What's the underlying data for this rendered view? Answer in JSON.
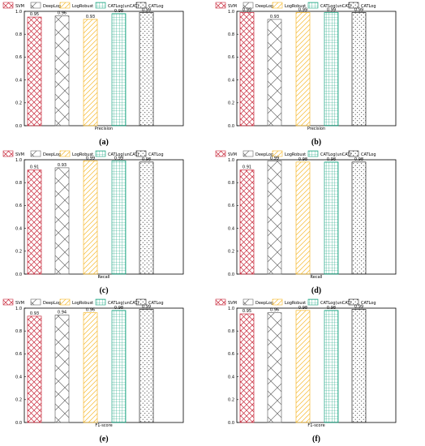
{
  "series_styles": [
    {
      "name": "SVM",
      "color": "#c8283a",
      "pattern": "cross"
    },
    {
      "name": "DeepLog",
      "color": "#6b6b6b",
      "pattern": "cross"
    },
    {
      "name": "LogRobust",
      "color": "#f5b92e",
      "pattern": "hatch"
    },
    {
      "name": "CATLog(unCAT)",
      "color": "#14a37f",
      "pattern": "grid"
    },
    {
      "name": "CATLog",
      "color": "#222222",
      "pattern": "dots"
    }
  ],
  "chart_data": [
    {
      "type": "bar",
      "caption": "(a)",
      "xlabel": "Precision",
      "ylim": [
        0,
        1.0
      ],
      "yticks": [
        "0.0",
        "0.2",
        "0.4",
        "0.6",
        "0.8",
        "1.0"
      ],
      "categories": [
        "SVM",
        "DeepLog",
        "LogRobust",
        "CATLog(unCAT)",
        "CATLog"
      ],
      "values": [
        0.95,
        0.96,
        0.93,
        0.98,
        0.99
      ],
      "labels": [
        "0.95",
        "0.96",
        "0.93",
        "0.98",
        "0.99"
      ]
    },
    {
      "type": "bar",
      "caption": "(b)",
      "xlabel": "Precision",
      "ylim": [
        0,
        1.0
      ],
      "yticks": [
        "0.0",
        "0.2",
        "0.4",
        "0.6",
        "0.8",
        "1.0"
      ],
      "categories": [
        "SVM",
        "DeepLog",
        "LogRobust",
        "CATLog(unCAT)",
        "CATLog"
      ],
      "values": [
        0.99,
        0.93,
        0.99,
        0.99,
        0.99
      ],
      "labels": [
        "0.99",
        "0.93",
        "0.99",
        "0.99",
        "0.99"
      ]
    },
    {
      "type": "bar",
      "caption": "(c)",
      "xlabel": "Recall",
      "ylim": [
        0,
        1.0
      ],
      "yticks": [
        "0.0",
        "0.2",
        "0.4",
        "0.6",
        "0.8",
        "1.0"
      ],
      "categories": [
        "SVM",
        "DeepLog",
        "LogRobust",
        "CATLog(unCAT)",
        "CATLog"
      ],
      "values": [
        0.91,
        0.93,
        0.99,
        0.99,
        0.98
      ],
      "labels": [
        "0.91",
        "0.93",
        "0.99",
        "0.99",
        "0.98"
      ]
    },
    {
      "type": "bar",
      "caption": "(d)",
      "xlabel": "Recall",
      "ylim": [
        0,
        1.0
      ],
      "yticks": [
        "0.0",
        "0.2",
        "0.4",
        "0.6",
        "0.8",
        "1.0"
      ],
      "categories": [
        "SVM",
        "DeepLog",
        "LogRobust",
        "CATLog(unCAT)",
        "CATLog"
      ],
      "values": [
        0.91,
        0.99,
        0.98,
        0.98,
        0.98
      ],
      "labels": [
        "0.91",
        "0.99",
        "0.98",
        "0.98",
        "0.98"
      ]
    },
    {
      "type": "bar",
      "caption": "(e)",
      "xlabel": "F1-score",
      "ylim": [
        0,
        1.0
      ],
      "yticks": [
        "0.0",
        "0.2",
        "0.4",
        "0.6",
        "0.8",
        "1.0"
      ],
      "categories": [
        "SVM",
        "DeepLog",
        "LogRobust",
        "CATLog(unCAT)",
        "CATLog"
      ],
      "values": [
        0.93,
        0.94,
        0.96,
        0.98,
        0.99
      ],
      "labels": [
        "0.93",
        "0.94",
        "0.96",
        "0.98",
        "0.99"
      ]
    },
    {
      "type": "bar",
      "caption": "(f)",
      "xlabel": "F1-score",
      "ylim": [
        0,
        1.0
      ],
      "yticks": [
        "0.0",
        "0.2",
        "0.4",
        "0.6",
        "0.8",
        "1.0"
      ],
      "categories": [
        "SVM",
        "DeepLog",
        "LogRobust",
        "CATLog(unCAT)",
        "CATLog"
      ],
      "values": [
        0.95,
        0.96,
        0.98,
        0.98,
        0.99
      ],
      "labels": [
        "0.95",
        "0.96",
        "0.98",
        "0.98",
        "0.99"
      ]
    }
  ]
}
